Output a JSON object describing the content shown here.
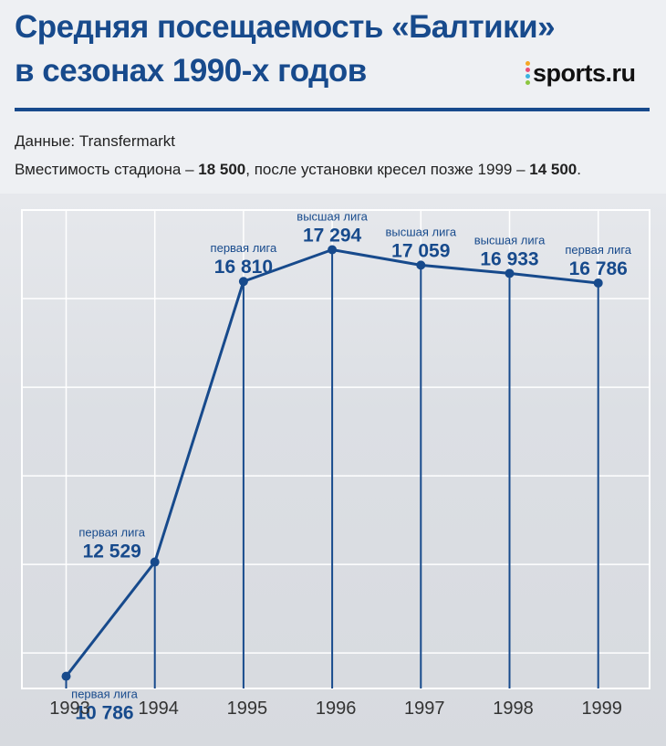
{
  "header": {
    "title_line1": "Средняя посещаемость «Балтики»",
    "title_line2": "в сезонах 1990-х годов",
    "logo_text": "sports.ru",
    "logo_dot_colors": [
      "#f5a623",
      "#e94e77",
      "#3bb3e0",
      "#8cc63f"
    ]
  },
  "info": {
    "source": "Данные: Transfermarkt",
    "capacity_prefix": "Вместимость стадиона – ",
    "capacity_value": "18 500",
    "capacity_middle": ", после установки кресел позже 1999 – ",
    "capacity_after": "14 500",
    "capacity_suffix": "."
  },
  "colors": {
    "accent": "#174a8c",
    "line": "#174a8c"
  },
  "chart_data": {
    "type": "line",
    "x": [
      "1993",
      "1994",
      "1995",
      "1996",
      "1997",
      "1998",
      "1999"
    ],
    "values": [
      10786,
      12529,
      16810,
      17294,
      17059,
      16933,
      16786
    ],
    "value_labels": [
      "10 786",
      "12 529",
      "16 810",
      "17 294",
      "17 059",
      "16 933",
      "16 786"
    ],
    "league_labels": [
      "первая лига",
      "первая лига",
      "первая лига",
      "высшая лига",
      "высшая лига",
      "высшая лига",
      "первая лига"
    ],
    "ylim": [
      10600,
      17900
    ],
    "grid": true,
    "title": "",
    "xlabel": "",
    "ylabel": ""
  }
}
